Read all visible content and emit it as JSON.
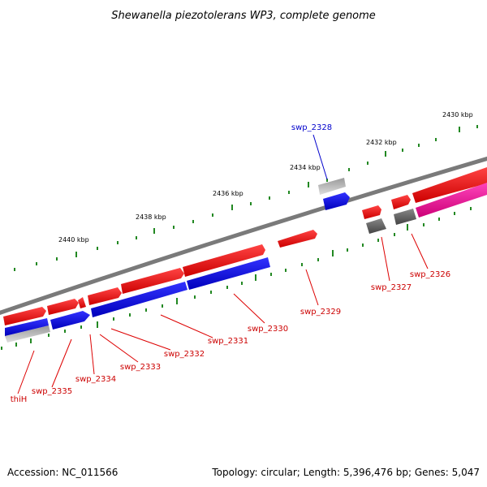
{
  "title": "Shewanella piezotolerans WP3, complete genome",
  "ticks": [
    "2430 kbp",
    "2432 kbp",
    "2434 kbp",
    "2436 kbp",
    "2438 kbp",
    "2440 kbp"
  ],
  "genes": [
    {
      "label": "swp_2328",
      "color": "#0000cc"
    },
    {
      "label": "swp_2326",
      "color": "#cc0000"
    },
    {
      "label": "swp_2327",
      "color": "#cc0000"
    },
    {
      "label": "swp_2329",
      "color": "#cc0000"
    },
    {
      "label": "swp_2330",
      "color": "#cc0000"
    },
    {
      "label": "swp_2331",
      "color": "#cc0000"
    },
    {
      "label": "swp_2332",
      "color": "#cc0000"
    },
    {
      "label": "swp_2333",
      "color": "#cc0000"
    },
    {
      "label": "swp_2334",
      "color": "#cc0000"
    },
    {
      "label": "swp_2335",
      "color": "#cc0000"
    },
    {
      "label": "thiH",
      "color": "#cc0000"
    }
  ],
  "footer": {
    "accession": "Accession: NC_011566",
    "summary": "Topology: circular; Length: 5,396,476 bp; Genes: 5,047"
  },
  "colors": {
    "forward": "#ee1111",
    "reverse": "#1111dd",
    "gray": "#aaaaaa",
    "darkgray": "#666666",
    "pink": "#ee1199",
    "tick": "#228822",
    "backbone": "#808080"
  }
}
